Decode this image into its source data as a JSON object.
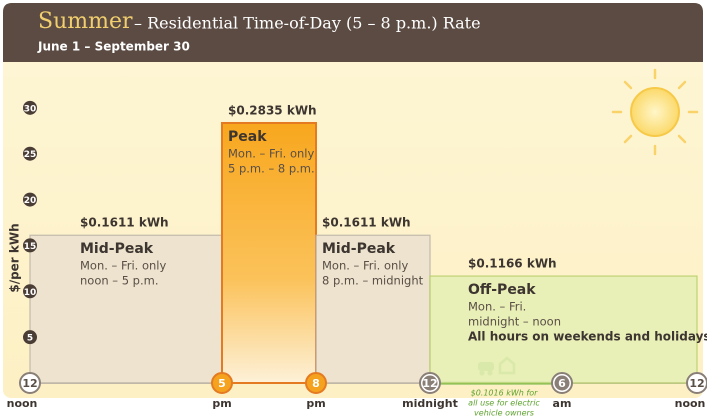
{
  "chart_data": {
    "type": "bar",
    "title": "Summer",
    "title_rest": "– Residential Time-of-Day (5 – 8 p.m.) Rate",
    "subtitle": "June 1 – September 30",
    "y_label": "$/per kWh",
    "ylim": [
      0,
      35
    ],
    "yticks": [
      5,
      10,
      15,
      20,
      25,
      30
    ],
    "time_marks": [
      {
        "number": "12",
        "label": "noon"
      },
      {
        "number": "5",
        "label": "pm"
      },
      {
        "number": "8",
        "label": "pm"
      },
      {
        "number": "12",
        "label": "midnight"
      },
      {
        "number": "6",
        "label": "am"
      },
      {
        "number": "12",
        "label": "noon"
      }
    ],
    "segments": [
      {
        "name": "Mid-Peak",
        "value": 16.11,
        "value_label": "$0.1611 kWh",
        "notes": [
          "Mon. – Fri. only",
          "noon – 5 p.m."
        ],
        "color": "#ece2cf",
        "border": "#bdb5aa"
      },
      {
        "name": "Peak",
        "value": 28.35,
        "value_label": "$0.2835 kWh",
        "notes": [
          "Mon. – Fri. only",
          "5 p.m. – 8 p.m."
        ],
        "color": "#f8a71e",
        "border": "#e47a22"
      },
      {
        "name": "Mid-Peak",
        "value": 16.11,
        "value_label": "$0.1611 kWh",
        "notes": [
          "Mon. – Fri. only",
          "8 p.m. – midnight"
        ],
        "color": "#ece2cf",
        "border": "#bdb5aa"
      },
      {
        "name": "Off-Peak",
        "value": 11.66,
        "value_label": "$0.1166 kWh",
        "notes": [
          "Mon. – Fri.",
          "midnight  – noon"
        ],
        "bold_note": "All hours on weekends and holidays",
        "color": "#e6efb6",
        "border": "#b8d06a"
      }
    ],
    "ev_note": [
      "$0.1016 kWh for",
      "all use for electric",
      "vehicle owners"
    ]
  }
}
